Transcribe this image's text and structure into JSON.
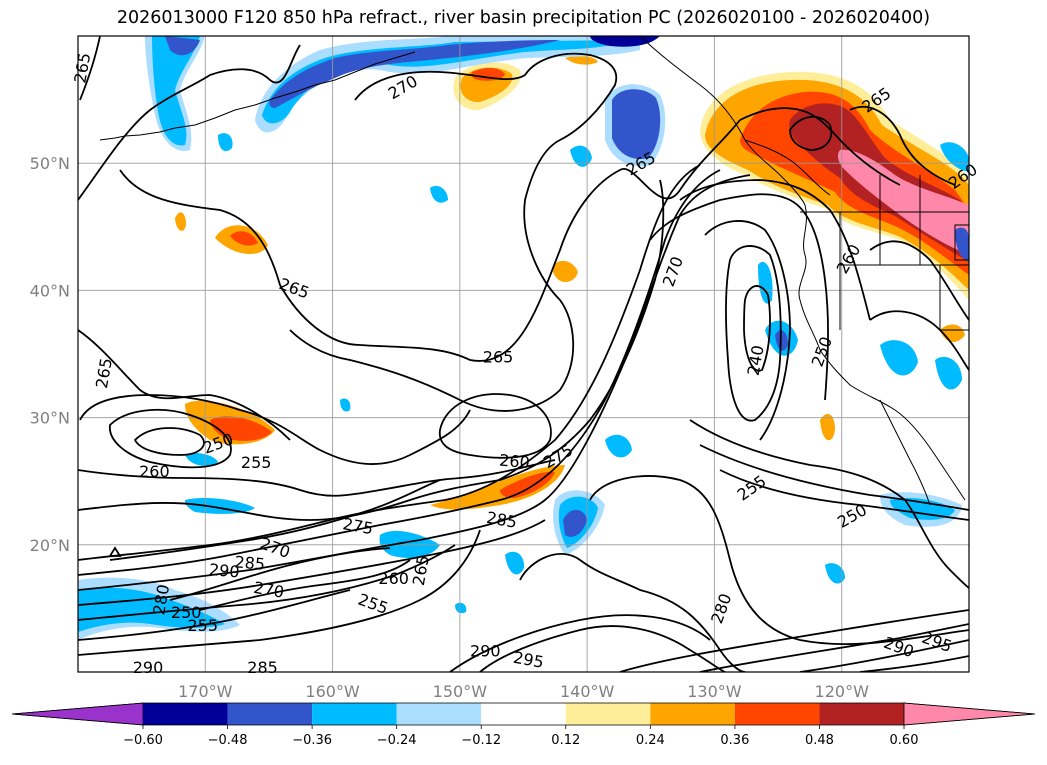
{
  "title": "2026013000 F120 850 hPa refract., river basin precipitation PC (2026020100 - 2026020400)",
  "chart_data": {
    "type": "map",
    "title": "2026013000 F120 850 hPa refract., river basin precipitation PC (2026020100 - 2026020400)",
    "lon_range": [
      -180,
      -110
    ],
    "lat_range": [
      10,
      60
    ],
    "lat_ticks": [
      {
        "value": 20,
        "label": "20°N"
      },
      {
        "value": 30,
        "label": "30°N"
      },
      {
        "value": 40,
        "label": "40°N"
      },
      {
        "value": 50,
        "label": "50°N"
      }
    ],
    "lon_ticks": [
      {
        "value": -170,
        "label": "170°W"
      },
      {
        "value": -160,
        "label": "160°W"
      },
      {
        "value": -150,
        "label": "150°W"
      },
      {
        "value": -140,
        "label": "140°W"
      },
      {
        "value": -130,
        "label": "130°W"
      },
      {
        "value": -120,
        "label": "120°W"
      }
    ],
    "colorbar": {
      "extend": "both",
      "boundaries": [
        -0.6,
        -0.48,
        -0.36,
        -0.24,
        -0.12,
        0.12,
        0.24,
        0.36,
        0.48,
        0.6
      ],
      "tick_labels": [
        "−0.60",
        "−0.48",
        "−0.36",
        "−0.24",
        "−0.12",
        "0.12",
        "0.24",
        "0.36",
        "0.48",
        "0.60"
      ],
      "colors": [
        "#9933cc",
        "#000099",
        "#3355cc",
        "#00bbff",
        "#aaddff",
        "#ffffff",
        "#ffee99",
        "#ffa500",
        "#ff4500",
        "#b22222",
        "#ff88aa"
      ]
    },
    "contour_labels": [
      {
        "text": "265",
        "lon": -179.7,
        "lat": 57.5,
        "angle": -80
      },
      {
        "text": "270",
        "lon": -154.5,
        "lat": 56.0,
        "angle": -30
      },
      {
        "text": "265",
        "lon": -135.8,
        "lat": 50.0,
        "angle": -30
      },
      {
        "text": "265",
        "lon": -117.3,
        "lat": 55.0,
        "angle": -35
      },
      {
        "text": "260",
        "lon": -110.5,
        "lat": 49.0,
        "angle": -35
      },
      {
        "text": "265",
        "lon": -163.0,
        "lat": 40.2,
        "angle": 20
      },
      {
        "text": "260",
        "lon": -119.5,
        "lat": 42.5,
        "angle": -60
      },
      {
        "text": "270",
        "lon": -133.3,
        "lat": 41.5,
        "angle": -70
      },
      {
        "text": "240",
        "lon": -126.8,
        "lat": 34.5,
        "angle": -80
      },
      {
        "text": "250",
        "lon": -121.6,
        "lat": 35.2,
        "angle": -70
      },
      {
        "text": "265",
        "lon": -178.0,
        "lat": 33.5,
        "angle": -80
      },
      {
        "text": "265",
        "lon": -147.0,
        "lat": 34.8,
        "angle": 0
      },
      {
        "text": "250",
        "lon": -169.0,
        "lat": 28.0,
        "angle": -20
      },
      {
        "text": "255",
        "lon": -166.0,
        "lat": 26.5,
        "angle": 0
      },
      {
        "text": "260",
        "lon": -174.0,
        "lat": 25.8,
        "angle": 0
      },
      {
        "text": "260",
        "lon": -145.7,
        "lat": 26.6,
        "angle": 5
      },
      {
        "text": "275",
        "lon": -142.3,
        "lat": 27.0,
        "angle": -30
      },
      {
        "text": "285",
        "lon": -146.7,
        "lat": 22.0,
        "angle": 10
      },
      {
        "text": "275",
        "lon": -158.0,
        "lat": 21.5,
        "angle": 10
      },
      {
        "text": "270",
        "lon": -164.5,
        "lat": 19.8,
        "angle": 20
      },
      {
        "text": "290",
        "lon": -168.5,
        "lat": 18.0,
        "angle": 5
      },
      {
        "text": "285",
        "lon": -166.5,
        "lat": 18.6,
        "angle": 5
      },
      {
        "text": "270",
        "lon": -165.0,
        "lat": 16.5,
        "angle": 10
      },
      {
        "text": "260",
        "lon": -155.2,
        "lat": 17.4,
        "angle": 0
      },
      {
        "text": "255",
        "lon": -156.8,
        "lat": 15.4,
        "angle": 20
      },
      {
        "text": "265",
        "lon": -153.1,
        "lat": 18.0,
        "angle": -80
      },
      {
        "text": "280",
        "lon": -173.5,
        "lat": 15.7,
        "angle": -80
      },
      {
        "text": "250",
        "lon": -171.5,
        "lat": 14.7,
        "angle": 0
      },
      {
        "text": "255",
        "lon": -170.2,
        "lat": 13.7,
        "angle": 0
      },
      {
        "text": "255",
        "lon": -127.1,
        "lat": 24.5,
        "angle": -35
      },
      {
        "text": "250",
        "lon": -119.2,
        "lat": 22.3,
        "angle": -30
      },
      {
        "text": "280",
        "lon": -129.5,
        "lat": 15.0,
        "angle": -70
      },
      {
        "text": "290",
        "lon": -148.0,
        "lat": 11.7,
        "angle": 0
      },
      {
        "text": "295",
        "lon": -144.6,
        "lat": 11.0,
        "angle": 10
      },
      {
        "text": "290",
        "lon": -115.5,
        "lat": 12.0,
        "angle": 20
      },
      {
        "text": "295",
        "lon": -112.5,
        "lat": 12.4,
        "angle": 20
      },
      {
        "text": "290",
        "lon": -174.5,
        "lat": 10.4,
        "angle": 0
      },
      {
        "text": "285",
        "lon": -165.5,
        "lat": 10.4,
        "angle": 0
      }
    ]
  },
  "colors": {
    "grid": "#999999",
    "axis_labels": "#808080",
    "coastline": "#000000",
    "contour": "#000000"
  }
}
